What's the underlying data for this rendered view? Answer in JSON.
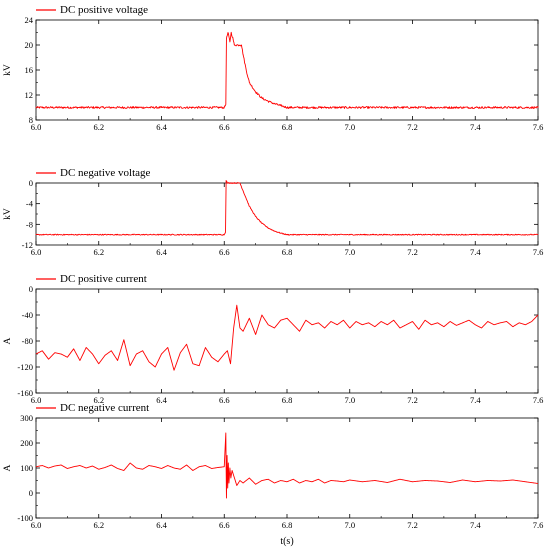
{
  "colors": {
    "series": "#ff0000",
    "axis": "#000000",
    "background": "#ffffff"
  },
  "figure": {
    "xlabel": "t(s)"
  },
  "chart_data": [
    {
      "type": "line",
      "legend": "DC positive voltage",
      "ylabel": "kV",
      "xlim": [
        6.0,
        7.6
      ],
      "ylim": [
        8,
        24
      ],
      "xticks": [
        "6.0",
        "6.2",
        "6.4",
        "6.6",
        "6.8",
        "7.0",
        "7.2",
        "7.4",
        "7.6"
      ],
      "yticks": [
        "8",
        "12",
        "16",
        "20",
        "24"
      ],
      "series": [
        {
          "name": "DC positive voltage",
          "noise": 0.1,
          "x": [
            6.0,
            6.2,
            6.4,
            6.6,
            6.605,
            6.607,
            6.612,
            6.618,
            6.622,
            6.628,
            6.632,
            6.64,
            6.65,
            6.655,
            6.66,
            6.67,
            6.68,
            6.7,
            6.72,
            6.74,
            6.76,
            6.78,
            6.8,
            6.9,
            7.0,
            7.2,
            7.4,
            7.6
          ],
          "y": [
            10,
            10,
            10,
            10,
            10.5,
            21,
            22,
            20.5,
            22,
            21,
            20,
            20,
            20,
            20,
            18.5,
            16,
            14,
            12.5,
            11.5,
            11,
            10.6,
            10.3,
            10,
            10,
            10,
            10,
            10,
            10
          ]
        }
      ]
    },
    {
      "type": "line",
      "legend": "DC negative voltage",
      "ylabel": "kV",
      "xlim": [
        6.0,
        7.6
      ],
      "ylim": [
        -12,
        0
      ],
      "xticks": [
        "6.0",
        "6.2",
        "6.4",
        "6.6",
        "6.8",
        "7.0",
        "7.2",
        "7.4",
        "7.6"
      ],
      "yticks": [
        "0",
        "-4",
        "-8",
        "-12"
      ],
      "series": [
        {
          "name": "DC negative voltage",
          "noise": 0.08,
          "x": [
            6.0,
            6.2,
            6.4,
            6.6,
            6.604,
            6.606,
            6.61,
            6.65,
            6.66,
            6.67,
            6.68,
            6.7,
            6.72,
            6.74,
            6.76,
            6.78,
            6.8,
            6.82,
            7.0,
            7.2,
            7.4,
            7.6
          ],
          "y": [
            -10,
            -10,
            -10,
            -10,
            -9.5,
            0.5,
            0,
            0,
            -1.5,
            -3,
            -4.5,
            -6.5,
            -7.8,
            -8.7,
            -9.3,
            -9.7,
            -10,
            -10,
            -10,
            -10,
            -10,
            -10
          ]
        }
      ]
    },
    {
      "type": "line",
      "legend": "DC positive current",
      "ylabel": "A",
      "xlim": [
        6.0,
        7.6
      ],
      "ylim": [
        -160,
        0
      ],
      "xticks": [
        "6.0",
        "6.2",
        "6.4",
        "6.6",
        "6.8",
        "7.0",
        "7.2",
        "7.4",
        "7.6"
      ],
      "yticks": [
        "0",
        "-40",
        "-80",
        "-120",
        "-160"
      ],
      "series": [
        {
          "name": "DC positive current",
          "noise": 0,
          "x": [
            6.0,
            6.02,
            6.04,
            6.06,
            6.08,
            6.1,
            6.12,
            6.14,
            6.16,
            6.18,
            6.2,
            6.22,
            6.24,
            6.26,
            6.28,
            6.3,
            6.32,
            6.34,
            6.36,
            6.38,
            6.4,
            6.42,
            6.44,
            6.46,
            6.48,
            6.5,
            6.52,
            6.54,
            6.56,
            6.58,
            6.6,
            6.61,
            6.62,
            6.63,
            6.64,
            6.65,
            6.66,
            6.68,
            6.7,
            6.72,
            6.74,
            6.76,
            6.78,
            6.8,
            6.82,
            6.84,
            6.86,
            6.88,
            6.9,
            6.92,
            6.94,
            6.96,
            6.98,
            7.0,
            7.02,
            7.04,
            7.06,
            7.08,
            7.1,
            7.12,
            7.14,
            7.16,
            7.18,
            7.2,
            7.22,
            7.24,
            7.26,
            7.28,
            7.3,
            7.32,
            7.34,
            7.36,
            7.38,
            7.4,
            7.42,
            7.44,
            7.46,
            7.48,
            7.5,
            7.52,
            7.54,
            7.56,
            7.58,
            7.6
          ],
          "y": [
            -100,
            -95,
            -108,
            -98,
            -100,
            -105,
            -92,
            -110,
            -90,
            -100,
            -115,
            -102,
            -95,
            -110,
            -78,
            -118,
            -100,
            -95,
            -112,
            -120,
            -100,
            -90,
            -125,
            -98,
            -85,
            -115,
            -118,
            -90,
            -105,
            -112,
            -100,
            -95,
            -115,
            -60,
            -25,
            -60,
            -65,
            -45,
            -70,
            -40,
            -55,
            -60,
            -48,
            -45,
            -55,
            -65,
            -48,
            -55,
            -52,
            -60,
            -50,
            -55,
            -48,
            -60,
            -50,
            -55,
            -52,
            -58,
            -50,
            -55,
            -48,
            -60,
            -55,
            -50,
            -62,
            -48,
            -55,
            -52,
            -58,
            -50,
            -56,
            -52,
            -48,
            -55,
            -60,
            -50,
            -55,
            -52,
            -50,
            -58,
            -52,
            -55,
            -50,
            -40
          ]
        }
      ]
    },
    {
      "type": "line",
      "legend": "DC  negative current",
      "ylabel": "A",
      "xlim": [
        6.0,
        7.6
      ],
      "ylim": [
        -100,
        300
      ],
      "xticks": [
        "6.0",
        "6.2",
        "6.4",
        "6.6",
        "6.8",
        "7.0",
        "7.2",
        "7.4",
        "7.6"
      ],
      "yticks": [
        "300",
        "200",
        "100",
        "0",
        "-100"
      ],
      "series": [
        {
          "name": "DC  negative current",
          "noise": 0,
          "x": [
            6.0,
            6.02,
            6.04,
            6.06,
            6.08,
            6.1,
            6.12,
            6.14,
            6.16,
            6.18,
            6.2,
            6.22,
            6.24,
            6.26,
            6.28,
            6.3,
            6.32,
            6.34,
            6.36,
            6.38,
            6.4,
            6.42,
            6.44,
            6.46,
            6.48,
            6.5,
            6.52,
            6.54,
            6.56,
            6.58,
            6.6,
            6.605,
            6.607,
            6.609,
            6.611,
            6.613,
            6.615,
            6.618,
            6.621,
            6.625,
            6.63,
            6.64,
            6.65,
            6.66,
            6.68,
            6.7,
            6.72,
            6.74,
            6.76,
            6.78,
            6.8,
            6.82,
            6.84,
            6.86,
            6.88,
            6.9,
            6.92,
            6.94,
            6.96,
            6.98,
            7.0,
            7.04,
            7.08,
            7.12,
            7.16,
            7.2,
            7.24,
            7.28,
            7.32,
            7.36,
            7.4,
            7.44,
            7.48,
            7.52,
            7.56,
            7.6
          ],
          "y": [
            105,
            110,
            100,
            108,
            112,
            98,
            105,
            110,
            100,
            108,
            95,
            102,
            112,
            98,
            90,
            120,
            100,
            95,
            110,
            105,
            98,
            110,
            100,
            95,
            112,
            90,
            105,
            110,
            98,
            102,
            105,
            240,
            -20,
            150,
            20,
            120,
            40,
            100,
            60,
            90,
            70,
            30,
            50,
            40,
            60,
            35,
            50,
            55,
            40,
            50,
            45,
            55,
            40,
            50,
            45,
            55,
            40,
            50,
            48,
            45,
            52,
            45,
            50,
            42,
            55,
            45,
            50,
            48,
            42,
            52,
            45,
            50,
            48,
            52,
            45,
            38
          ]
        }
      ]
    }
  ]
}
